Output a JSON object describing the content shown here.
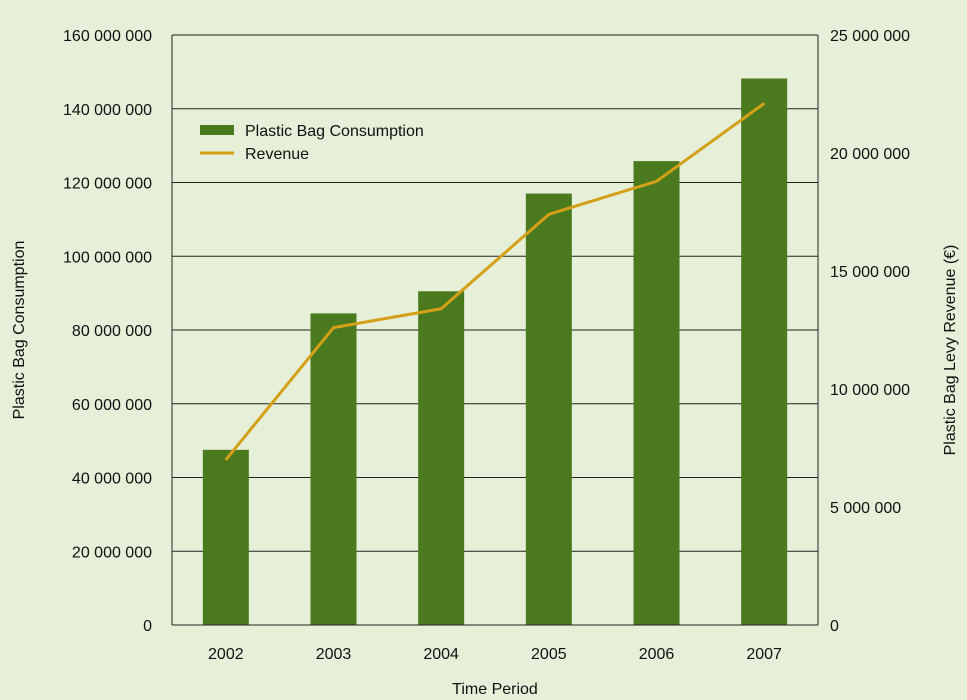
{
  "chart_data": {
    "type": "bar",
    "categories": [
      "2002",
      "2003",
      "2004",
      "2005",
      "2006",
      "2007"
    ],
    "series": [
      {
        "name": "Plastic Bag Consumption",
        "type": "bar",
        "axis": "left",
        "color": "#4b7a1e",
        "values": [
          47500000,
          84500000,
          90500000,
          117000000,
          125800000,
          148200000
        ]
      },
      {
        "name": "Revenue",
        "type": "line",
        "axis": "right",
        "color": "#d4a017",
        "values": [
          7000000,
          12600000,
          13400000,
          17400000,
          18800000,
          22100000
        ]
      }
    ],
    "xlabel": "Time Period",
    "ylabel": "Plastic Bag Consumption",
    "y2label": "Plastic Bag Levy Revenue (€)",
    "ylim": [
      0,
      160000000
    ],
    "y2lim": [
      0,
      25000000
    ],
    "yticks": [
      0,
      20000000,
      40000000,
      60000000,
      80000000,
      100000000,
      120000000,
      140000000,
      160000000
    ],
    "y2ticks": [
      0,
      5000000,
      10000000,
      15000000,
      20000000,
      25000000
    ],
    "ytick_labels": [
      "0",
      "20 000 000",
      "40 000 000",
      "60 000 000",
      "80 000 000",
      "100 000 000",
      "120 000 000",
      "140 000 000",
      "160 000 000"
    ],
    "y2tick_labels": [
      "0",
      "5 000 000",
      "10 000 000",
      "15 000 000",
      "20 000 000",
      "25 000 000"
    ],
    "grid": true,
    "legend": "top-left"
  }
}
